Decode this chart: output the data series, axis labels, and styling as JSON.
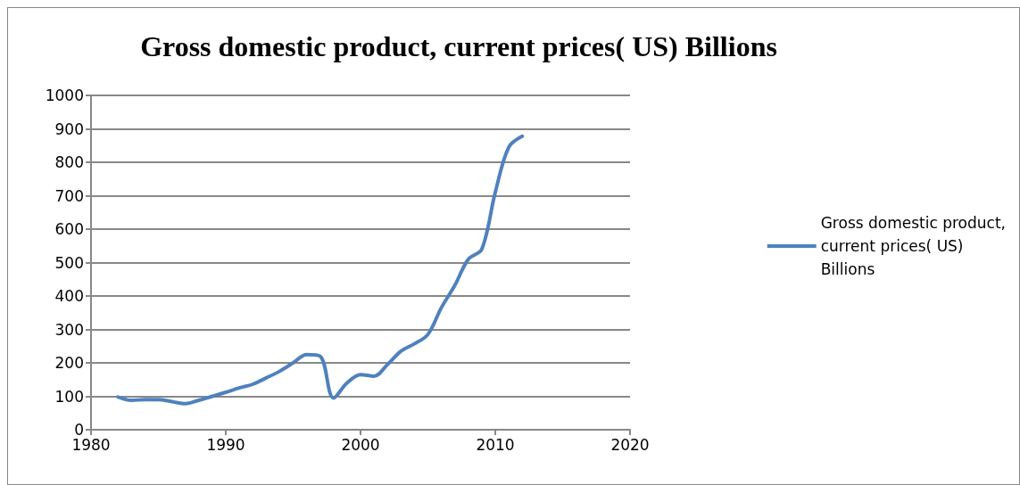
{
  "chart_data": {
    "type": "line",
    "title": "Gross domestic product, current prices( US) Billions",
    "x": [
      1982,
      1983,
      1984,
      1985,
      1986,
      1987,
      1988,
      1989,
      1990,
      1991,
      1992,
      1993,
      1994,
      1995,
      1996,
      1997,
      1998,
      1999,
      2000,
      2001,
      2002,
      2003,
      2004,
      2005,
      2006,
      2007,
      2008,
      2009,
      2010,
      2011,
      2012
    ],
    "series": [
      {
        "name": "Gross domestic product, current prices( US) Billions",
        "color": "#4f81bd",
        "values": [
          98,
          88,
          90,
          90,
          84,
          78,
          88,
          100,
          112,
          125,
          136,
          155,
          175,
          200,
          225,
          220,
          95,
          140,
          165,
          160,
          195,
          235,
          257,
          285,
          365,
          432,
          510,
          540,
          710,
          845,
          878
        ]
      }
    ],
    "xlim": [
      1980,
      2020
    ],
    "xticks": [
      1980,
      1990,
      2000,
      2010,
      2020
    ],
    "ylim": [
      0,
      1000
    ],
    "yticks": [
      0,
      100,
      200,
      300,
      400,
      500,
      600,
      700,
      800,
      900,
      1000
    ],
    "grid": "y",
    "legend": "right",
    "marker": "none",
    "line_style": "solid"
  }
}
